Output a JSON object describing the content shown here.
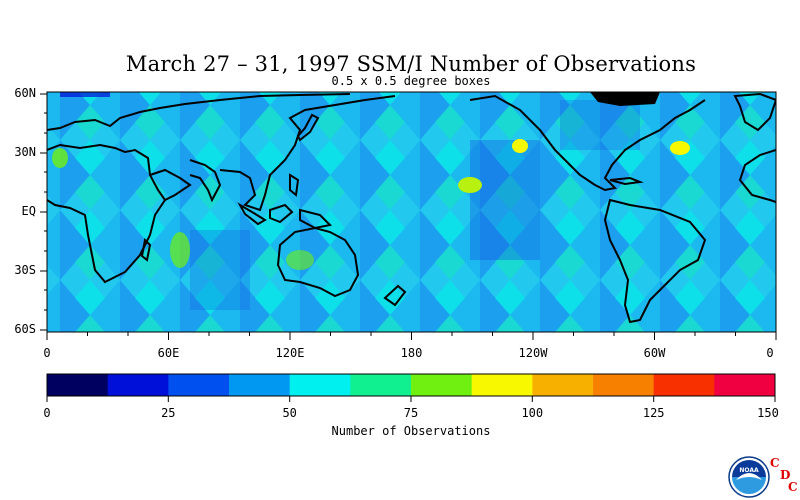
{
  "title": "March 27 – 31, 1997 SSM/I Number of Observations",
  "subtitle": "0.5 x 0.5 degree boxes",
  "y_axis_labels": [
    "60N",
    "30N",
    "EQ",
    "30S",
    "60S"
  ],
  "x_axis_labels": [
    "0",
    "60E",
    "120E",
    "180",
    "120W",
    "60W",
    "0"
  ],
  "colorbar": {
    "title": "Number of Observations",
    "tick_labels": [
      "0",
      "25",
      "50",
      "75",
      "100",
      "125",
      "150"
    ],
    "colors": [
      "#000060",
      "#0010d8",
      "#0050f0",
      "#0098f0",
      "#00f0f0",
      "#10f090",
      "#70f010",
      "#f8f800",
      "#f8b000",
      "#f88000",
      "#f83000",
      "#f00040"
    ]
  },
  "logo": {
    "name": "noaa-logo",
    "text": "NOAA",
    "letters": [
      "C",
      "D",
      "C"
    ]
  }
}
